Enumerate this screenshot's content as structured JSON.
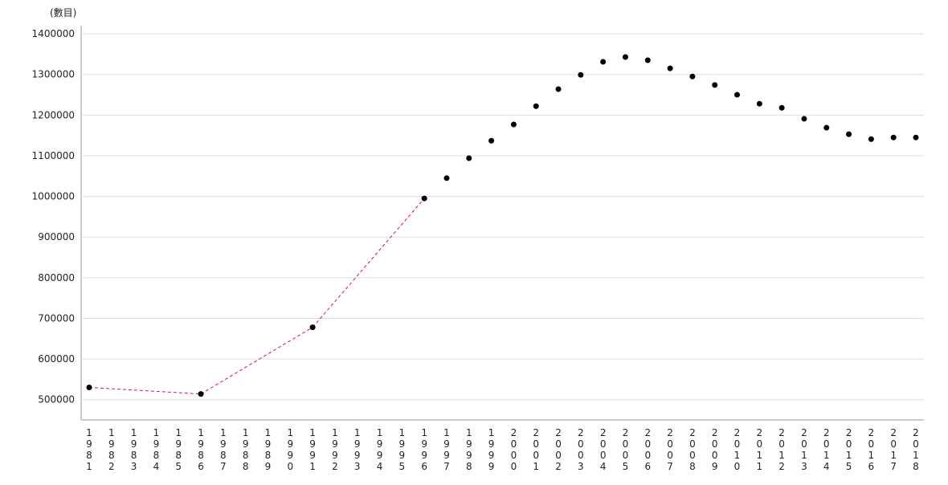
{
  "chart_data": {
    "type": "line",
    "y_label": "(數目)",
    "categories": [
      "1981",
      "1982",
      "1983",
      "1984",
      "1985",
      "1986",
      "1987",
      "1988",
      "1989",
      "1990",
      "1991",
      "1992",
      "1993",
      "1994",
      "1995",
      "1996",
      "1997",
      "1998",
      "1999",
      "2000",
      "2001",
      "2002",
      "2003",
      "2004",
      "2005",
      "2006",
      "2007",
      "2008",
      "2009",
      "2010",
      "2011",
      "2012",
      "2013",
      "2014",
      "2015",
      "2016",
      "2017",
      "2018"
    ],
    "values": [
      530000,
      null,
      null,
      null,
      null,
      514000,
      null,
      null,
      null,
      null,
      678000,
      null,
      null,
      null,
      null,
      995000,
      1045000,
      1094000,
      1137000,
      1177000,
      1222000,
      1264000,
      1299000,
      1331000,
      1343000,
      1335000,
      1315000,
      1295000,
      1274000,
      1250000,
      1228000,
      1218000,
      1191000,
      1169000,
      1153000,
      1141000,
      1145000,
      1145000
    ],
    "color": "#dc143c",
    "marker_color": "#000000",
    "ylim": [
      450000,
      1420000
    ],
    "yticks": [
      500000,
      600000,
      700000,
      800000,
      900000,
      1000000,
      1100000,
      1200000,
      1300000,
      1400000
    ],
    "grid": true
  }
}
